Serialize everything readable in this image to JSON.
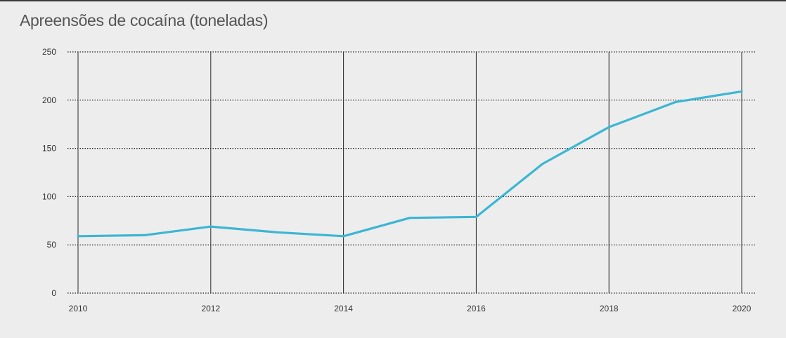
{
  "chart_data": {
    "type": "line",
    "title": "Apreensões de cocaína (toneladas)",
    "xlabel": "",
    "ylabel": "",
    "x": [
      2010,
      2011,
      2012,
      2013,
      2014,
      2015,
      2016,
      2017,
      2018,
      2019,
      2020
    ],
    "x_ticks": [
      2010,
      2012,
      2014,
      2016,
      2018,
      2020
    ],
    "y_ticks": [
      0,
      50,
      100,
      150,
      200,
      250
    ],
    "xlim": [
      2010,
      2020
    ],
    "ylim": [
      0,
      250
    ],
    "grid": {
      "horizontal": "dotted",
      "vertical": "solid"
    },
    "series": [
      {
        "color": "#3bb6d3",
        "values": [
          59,
          60,
          69,
          63,
          59,
          78,
          79,
          134,
          172,
          198,
          209
        ]
      }
    ]
  }
}
